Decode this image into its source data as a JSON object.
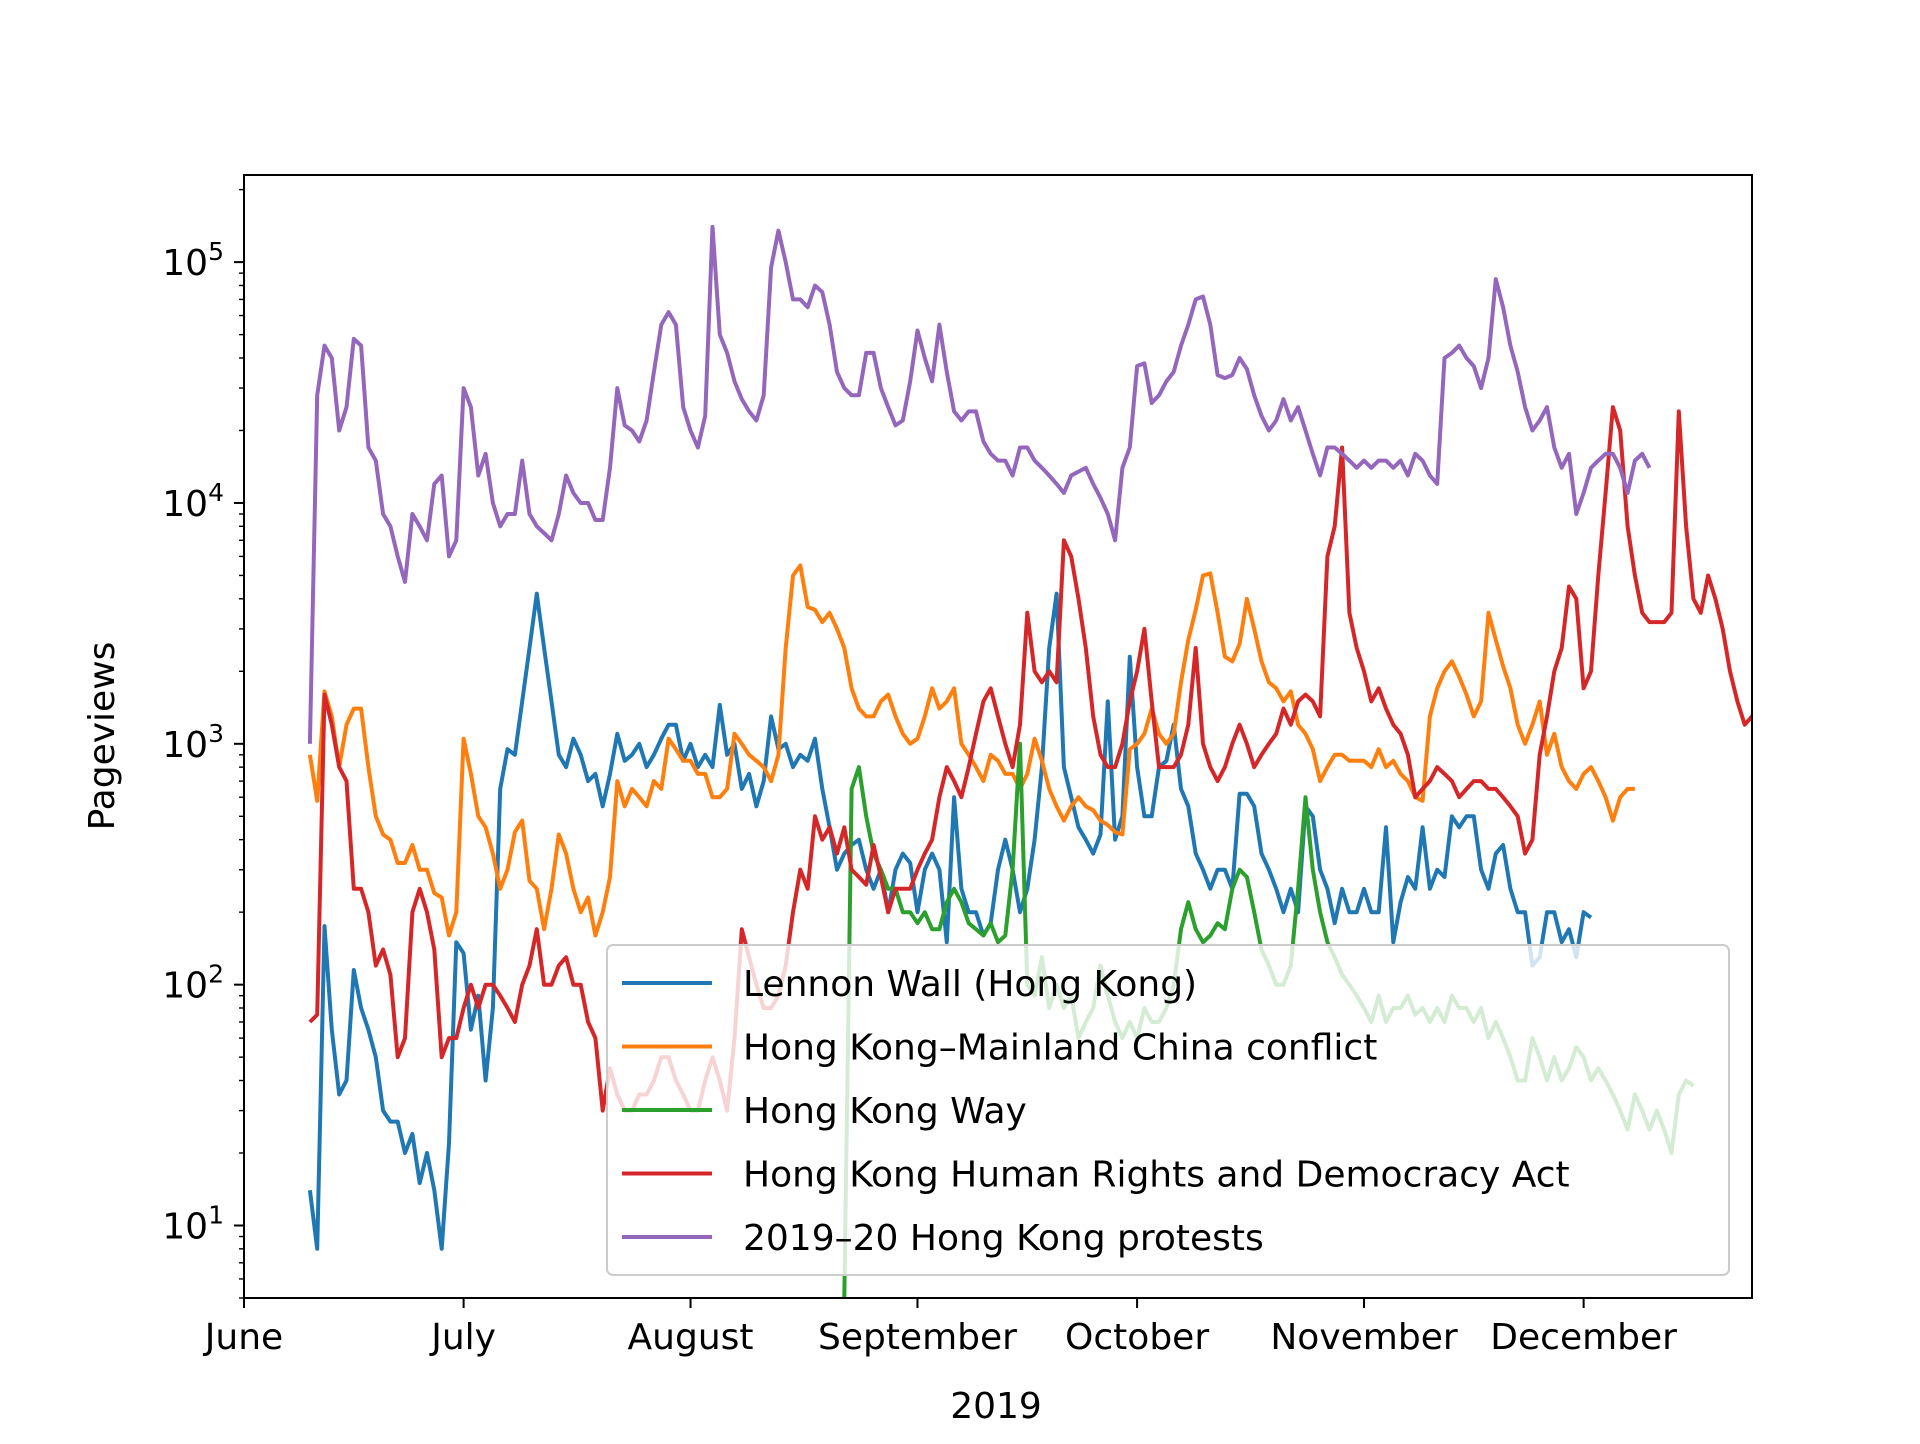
{
  "chart_data": {
    "type": "line",
    "title": "",
    "xlabel": "2019",
    "ylabel": "Pageviews",
    "yscale": "log",
    "ylim": [
      5,
      230000
    ],
    "xlim": [
      "2019-06-01",
      "2019-12-24"
    ],
    "grid": false,
    "legend_position": "lower-right",
    "x_ticks": [
      {
        "date": "2019-06-01",
        "label": "June"
      },
      {
        "date": "2019-07-01",
        "label": "July"
      },
      {
        "date": "2019-08-01",
        "label": "August"
      },
      {
        "date": "2019-09-01",
        "label": "September"
      },
      {
        "date": "2019-10-01",
        "label": "October"
      },
      {
        "date": "2019-11-01",
        "label": "November"
      },
      {
        "date": "2019-12-01",
        "label": "December"
      }
    ],
    "y_ticks": [
      {
        "value": 10,
        "base": "10",
        "exp": "1"
      },
      {
        "value": 100,
        "base": "10",
        "exp": "2"
      },
      {
        "value": 1000,
        "base": "10",
        "exp": "3"
      },
      {
        "value": 10000,
        "base": "10",
        "exp": "4"
      },
      {
        "value": 100000,
        "base": "10",
        "exp": "5"
      }
    ],
    "series": [
      {
        "name": "Lennon Wall (Hong Kong)",
        "color": "#1f77b4",
        "start": "2019-06-10",
        "values": [
          14,
          8,
          175,
          65,
          35,
          40,
          115,
          80,
          65,
          50,
          30,
          27,
          27,
          20,
          24,
          15,
          20,
          14,
          8,
          22,
          150,
          135,
          65,
          90,
          40,
          80,
          650,
          950,
          900,
          1500,
          2500,
          4200,
          2500,
          1500,
          900,
          800,
          1050,
          900,
          700,
          750,
          550,
          750,
          1100,
          850,
          900,
          1000,
          800,
          900,
          1050,
          1200,
          1200,
          850,
          1000,
          800,
          900,
          800,
          1450,
          900,
          1000,
          650,
          750,
          550,
          700,
          1300,
          950,
          1000,
          800,
          900,
          850,
          1050,
          650,
          450,
          300,
          350,
          380,
          400,
          300,
          250,
          300,
          200,
          300,
          350,
          320,
          200,
          300,
          350,
          300,
          150,
          600,
          250,
          200,
          200,
          160,
          180,
          300,
          400,
          300,
          200,
          250,
          400,
          800,
          2500,
          4200,
          800,
          600,
          450,
          400,
          350,
          420,
          1500,
          400,
          500,
          2300,
          800,
          500,
          500,
          800,
          850,
          1200,
          650,
          550,
          350,
          300,
          250,
          300,
          300,
          250,
          620,
          620,
          550,
          350,
          300,
          250,
          200,
          250,
          200,
          550,
          500,
          300,
          250,
          180,
          250,
          200,
          200,
          250,
          200,
          200,
          450,
          150,
          220,
          280,
          250,
          450,
          250,
          300,
          280,
          500,
          450,
          500,
          500,
          300,
          250,
          350,
          380,
          250,
          200,
          200,
          120,
          130,
          200,
          200,
          150,
          170,
          130,
          200,
          190
        ]
      },
      {
        "name": "Hong Kong–Mainland China conflict",
        "color": "#ff7f0e",
        "start": "2019-06-10",
        "values": [
          900,
          580,
          1650,
          1300,
          800,
          1200,
          1400,
          1400,
          800,
          500,
          420,
          400,
          320,
          320,
          380,
          300,
          300,
          240,
          230,
          160,
          200,
          1050,
          750,
          500,
          450,
          350,
          250,
          300,
          430,
          480,
          270,
          250,
          170,
          250,
          420,
          350,
          250,
          200,
          230,
          160,
          200,
          280,
          700,
          550,
          650,
          600,
          550,
          700,
          650,
          1050,
          950,
          850,
          850,
          750,
          750,
          600,
          600,
          650,
          1100,
          1000,
          900,
          850,
          800,
          700,
          900,
          2500,
          5000,
          5500,
          3700,
          3600,
          3200,
          3500,
          3000,
          2500,
          1700,
          1400,
          1300,
          1300,
          1500,
          1600,
          1300,
          1100,
          1000,
          1050,
          1300,
          1700,
          1400,
          1500,
          1700,
          1000,
          900,
          800,
          700,
          900,
          850,
          750,
          750,
          650,
          750,
          1050,
          850,
          650,
          550,
          480,
          550,
          600,
          550,
          530,
          480,
          460,
          430,
          420,
          950,
          1000,
          1100,
          1400,
          1100,
          1000,
          1100,
          1800,
          2700,
          3600,
          5000,
          5100,
          3500,
          2300,
          2200,
          2600,
          4000,
          3000,
          2200,
          1800,
          1700,
          1500,
          1650,
          1200,
          1100,
          950,
          700,
          800,
          900,
          900,
          850,
          850,
          850,
          800,
          950,
          800,
          850,
          750,
          700,
          600,
          580,
          1300,
          1700,
          2000,
          2200,
          1900,
          1600,
          1300,
          1500,
          3500,
          2700,
          2100,
          1700,
          1200,
          1000,
          1200,
          1500,
          900,
          1100,
          800,
          700,
          650,
          750,
          800,
          700,
          600,
          480,
          600,
          650,
          650
        ]
      },
      {
        "name": "Hong Kong Way",
        "color": "#2ca02c",
        "start": "2019-08-22",
        "values": [
          5,
          650,
          800,
          500,
          350,
          300,
          250,
          250,
          200,
          200,
          180,
          200,
          170,
          170,
          220,
          250,
          220,
          180,
          170,
          160,
          180,
          150,
          160,
          300,
          1000,
          100,
          90,
          130,
          80,
          100,
          80,
          90,
          60,
          70,
          80,
          120,
          90,
          70,
          60,
          70,
          60,
          80,
          70,
          70,
          80,
          100,
          170,
          220,
          170,
          150,
          160,
          180,
          170,
          250,
          300,
          280,
          200,
          140,
          120,
          100,
          100,
          120,
          250,
          600,
          300,
          200,
          150,
          130,
          110,
          100,
          90,
          80,
          70,
          90,
          70,
          80,
          80,
          90,
          75,
          80,
          70,
          80,
          70,
          90,
          80,
          80,
          70,
          80,
          60,
          70,
          60,
          50,
          40,
          40,
          60,
          50,
          40,
          50,
          40,
          45,
          55,
          50,
          40,
          45,
          40,
          35,
          30,
          25,
          35,
          30,
          25,
          30,
          25,
          20,
          35,
          40,
          38
        ]
      },
      {
        "name": "Hong Kong Human Rights and Democracy Act",
        "color": "#d62728",
        "start": "2019-06-10",
        "values": [
          70,
          75,
          1600,
          1200,
          800,
          700,
          250,
          250,
          200,
          120,
          140,
          110,
          50,
          60,
          200,
          250,
          200,
          140,
          50,
          60,
          60,
          80,
          100,
          80,
          100,
          100,
          90,
          80,
          70,
          100,
          120,
          170,
          100,
          100,
          120,
          130,
          100,
          100,
          70,
          60,
          30,
          45,
          35,
          30,
          30,
          35,
          35,
          40,
          50,
          50,
          40,
          35,
          30,
          30,
          40,
          50,
          40,
          30,
          60,
          170,
          130,
          100,
          80,
          80,
          90,
          120,
          200,
          300,
          250,
          500,
          400,
          450,
          350,
          450,
          300,
          280,
          260,
          380,
          280,
          200,
          250,
          250,
          250,
          300,
          350,
          400,
          600,
          800,
          700,
          600,
          800,
          1100,
          1500,
          1700,
          1300,
          1000,
          800,
          1200,
          3500,
          2000,
          1800,
          2000,
          1800,
          7000,
          6000,
          4000,
          2500,
          1300,
          900,
          800,
          800,
          1000,
          1500,
          2000,
          3000,
          1500,
          800,
          800,
          800,
          900,
          1200,
          2500,
          1000,
          800,
          700,
          800,
          1000,
          1200,
          1000,
          800,
          900,
          1000,
          1100,
          1400,
          1200,
          1500,
          1600,
          1500,
          1300,
          6000,
          8000,
          17000,
          3500,
          2500,
          2000,
          1500,
          1700,
          1400,
          1200,
          1100,
          900,
          600,
          650,
          700,
          800,
          750,
          700,
          600,
          650,
          700,
          700,
          650,
          650,
          600,
          550,
          500,
          350,
          400,
          900,
          1300,
          2000,
          2500,
          4500,
          4000,
          1700,
          2000,
          5000,
          11000,
          25000,
          20000,
          8000,
          5000,
          3500,
          3200,
          3200,
          3200,
          3500,
          24000,
          8000,
          4000,
          3500,
          5000,
          4000,
          3000,
          2000,
          1500,
          1200,
          1300,
          1400,
          1100
        ]
      },
      {
        "name": "2019–20 Hong Kong protests",
        "color": "#9467bd",
        "start": "2019-06-10",
        "values": [
          1000,
          28000,
          45000,
          40000,
          20000,
          25000,
          48000,
          45000,
          17000,
          15000,
          9000,
          8000,
          6000,
          4700,
          9000,
          8000,
          7000,
          12000,
          13000,
          6000,
          7000,
          30000,
          25000,
          13000,
          16000,
          10000,
          8000,
          9000,
          9000,
          15000,
          9000,
          8000,
          7500,
          7000,
          9000,
          13000,
          11000,
          10000,
          10000,
          8500,
          8500,
          14000,
          30000,
          21000,
          20000,
          18000,
          22000,
          35000,
          55000,
          62000,
          55000,
          25000,
          20000,
          17000,
          23000,
          140000,
          50000,
          42000,
          32000,
          27000,
          24000,
          22000,
          28000,
          95000,
          135000,
          100000,
          70000,
          70000,
          65000,
          80000,
          75000,
          55000,
          35000,
          30000,
          28000,
          28000,
          42000,
          42000,
          30000,
          25000,
          21000,
          22000,
          32000,
          52000,
          40000,
          32000,
          55000,
          35000,
          24000,
          22000,
          24000,
          24000,
          18000,
          16000,
          15000,
          15000,
          13000,
          17000,
          17000,
          15000,
          14000,
          13000,
          12000,
          11000,
          13000,
          13500,
          14000,
          12000,
          10500,
          9000,
          7000,
          14000,
          17000,
          37000,
          38000,
          26000,
          28000,
          32000,
          35000,
          45000,
          55000,
          70000,
          72000,
          55000,
          34000,
          33000,
          34000,
          40000,
          36000,
          28000,
          23000,
          20000,
          22000,
          27000,
          22000,
          25000,
          20000,
          16000,
          13000,
          17000,
          17000,
          16000,
          15000,
          14000,
          15000,
          14000,
          15000,
          15000,
          14000,
          15000,
          13000,
          16000,
          15000,
          13000,
          12000,
          40000,
          42000,
          45000,
          40000,
          37000,
          30000,
          40000,
          85000,
          65000,
          45000,
          35000,
          25000,
          20000,
          22000,
          25000,
          17000,
          14000,
          16000,
          9000,
          11000,
          14000,
          15000,
          16000,
          16000,
          14000,
          11000,
          15000,
          16000,
          14000
        ]
      }
    ]
  }
}
